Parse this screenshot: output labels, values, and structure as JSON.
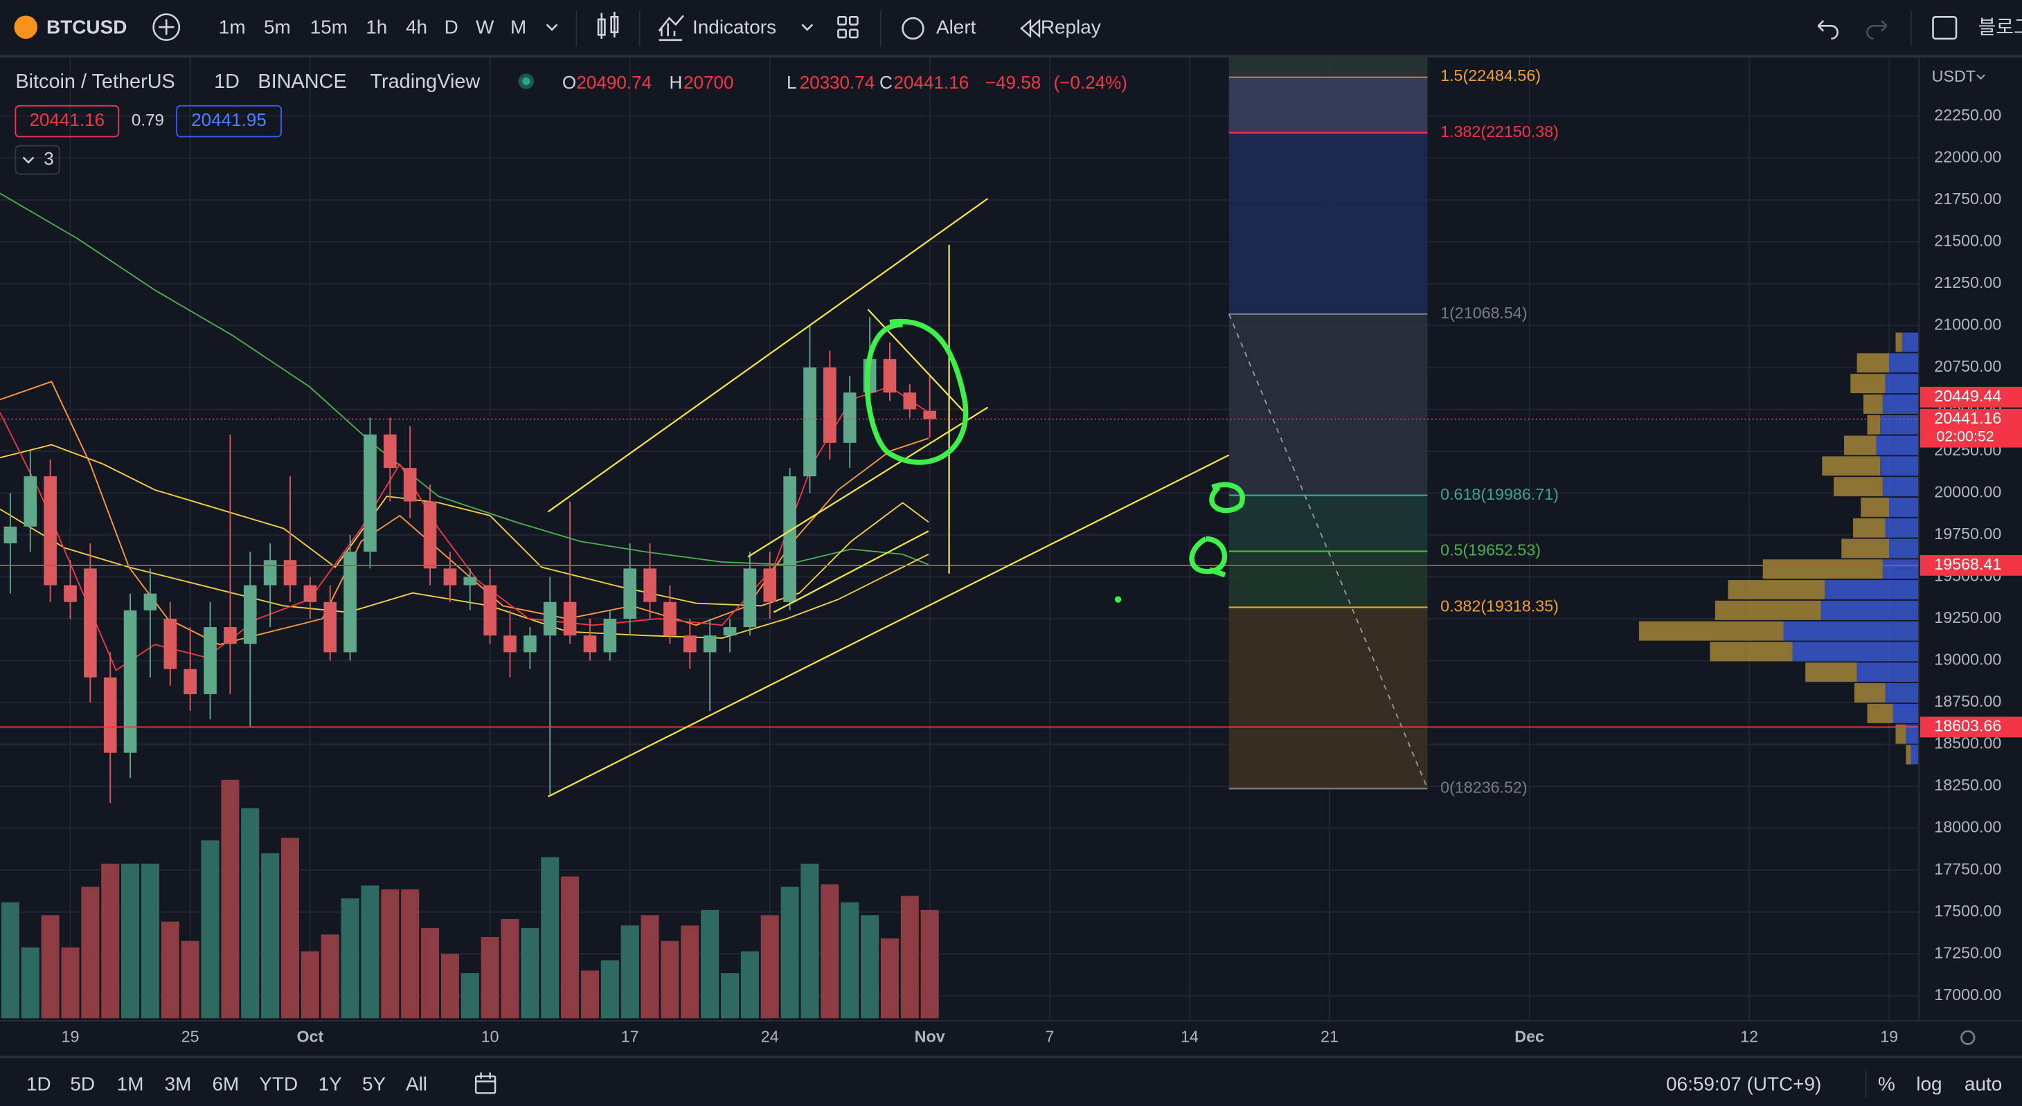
{
  "toolbar": {
    "symbol": "BTCUSD",
    "intervals": [
      "1m",
      "5m",
      "15m",
      "1h",
      "4h",
      "D",
      "W",
      "M"
    ],
    "indicators": "Indicators",
    "alert": "Alert",
    "replay": "Replay",
    "account": "블로그"
  },
  "legend": {
    "title": "Bitcoin / TetherUS",
    "interval": "1D",
    "exchange": "BINANCE",
    "source": "TradingView",
    "open_label": "O",
    "high_label": "H",
    "low_label": "L",
    "close_label": "C",
    "change": "−49.58",
    "change_percent": "(−0.24%)",
    "spread": "0.79",
    "ask": "20441.95",
    "indicator_count": "3"
  },
  "chart": {
    "currency": "USDT",
    "ylim": [
      16850,
      22604
    ],
    "yticks": [
      {
        "value": 17000,
        "label": "17000.00"
      },
      {
        "value": 17250,
        "label": "17250.00"
      },
      {
        "value": 17500,
        "label": "17500.00"
      },
      {
        "value": 17750,
        "label": "17750.00"
      },
      {
        "value": 18000,
        "label": "18000.00"
      },
      {
        "value": 18250,
        "label": "18250.00"
      },
      {
        "value": 18500,
        "label": "18500.00"
      },
      {
        "value": 18750,
        "label": "18750.00"
      },
      {
        "value": 19000,
        "label": "19000.00"
      },
      {
        "value": 19250,
        "label": "19250.00"
      },
      {
        "value": 19500,
        "label": "19500.00"
      },
      {
        "value": 19750,
        "label": "19750.00"
      },
      {
        "value": 20000,
        "label": "20000.00"
      },
      {
        "value": 20250,
        "label": "20250.00"
      },
      {
        "value": 20500,
        "label": "20500.00"
      },
      {
        "value": 20750,
        "label": "20750.00"
      },
      {
        "value": 21000,
        "label": "21000.00"
      },
      {
        "value": 21250,
        "label": "21250.00"
      },
      {
        "value": 21500,
        "label": "21500.00"
      },
      {
        "value": 21750,
        "label": "21750.00"
      },
      {
        "value": 22000,
        "label": "22000.00"
      },
      {
        "value": 22250,
        "label": "22250.00"
      }
    ],
    "x_labels": [
      "19",
      "25",
      "Oct",
      "10",
      "17",
      "24",
      "Nov",
      "7",
      "14",
      "21",
      "Dec",
      "12",
      "19"
    ],
    "candles": [
      [
        19700,
        20000,
        19400,
        19800
      ],
      [
        19800,
        20250,
        19650,
        20100
      ],
      [
        20100,
        20200,
        19350,
        19450
      ],
      [
        19450,
        19600,
        19250,
        19350
      ],
      [
        19550,
        19700,
        18750,
        18900
      ],
      [
        18900,
        19050,
        18150,
        18450
      ],
      [
        18450,
        19400,
        18300,
        19300
      ],
      [
        19300,
        19550,
        18900,
        19400
      ],
      [
        19250,
        19350,
        18850,
        18950
      ],
      [
        18950,
        19200,
        18700,
        18800
      ],
      [
        18800,
        19350,
        18650,
        19200
      ],
      [
        19200,
        20350,
        18800,
        19100
      ],
      [
        19100,
        19650,
        18600,
        19450
      ],
      [
        19450,
        19700,
        19200,
        19600
      ],
      [
        19600,
        20100,
        19350,
        19450
      ],
      [
        19450,
        19500,
        19250,
        19350
      ],
      [
        19350,
        19450,
        19000,
        19050
      ],
      [
        19050,
        19750,
        19000,
        19650
      ],
      [
        19650,
        20450,
        19550,
        20350
      ],
      [
        20350,
        20450,
        19950,
        20150
      ],
      [
        20150,
        20400,
        19850,
        19950
      ],
      [
        19950,
        20050,
        19450,
        19550
      ],
      [
        19550,
        19650,
        19350,
        19450
      ],
      [
        19450,
        19550,
        19300,
        19500
      ],
      [
        19450,
        19550,
        19100,
        19150
      ],
      [
        19150,
        19300,
        18900,
        19050
      ],
      [
        19050,
        19200,
        18950,
        19150
      ],
      [
        19150,
        19500,
        18200,
        19350
      ],
      [
        19350,
        19950,
        19100,
        19150
      ],
      [
        19150,
        19250,
        19000,
        19050
      ],
      [
        19050,
        19300,
        19000,
        19250
      ],
      [
        19250,
        19700,
        19150,
        19550
      ],
      [
        19550,
        19700,
        19250,
        19350
      ],
      [
        19350,
        19450,
        19100,
        19150
      ],
      [
        19150,
        19250,
        18950,
        19050
      ],
      [
        19050,
        19250,
        18700,
        19150
      ],
      [
        19150,
        19250,
        19050,
        19200
      ],
      [
        19200,
        19650,
        19150,
        19550
      ],
      [
        19550,
        19650,
        19250,
        19350
      ],
      [
        19350,
        20150,
        19300,
        20100
      ],
      [
        20100,
        21000,
        20000,
        20750
      ],
      [
        20750,
        20850,
        20200,
        20300
      ],
      [
        20300,
        20700,
        20150,
        20600
      ],
      [
        20600,
        21050,
        20500,
        20800
      ],
      [
        20800,
        20900,
        20550,
        20600
      ],
      [
        20600,
        20650,
        20450,
        20500
      ],
      [
        20490.74,
        20700.0,
        20330.74,
        20441.16
      ]
    ],
    "volumes": [
      90,
      55,
      80,
      55,
      102,
      120,
      120,
      120,
      75,
      60,
      138,
      185,
      163,
      128,
      140,
      52,
      65,
      93,
      103,
      100,
      100,
      70,
      50,
      35,
      63,
      77,
      70,
      125,
      110,
      37,
      45,
      72,
      80,
      60,
      72,
      84,
      35,
      52,
      80,
      102,
      120,
      104,
      90,
      80,
      62,
      95,
      84
    ],
    "price_labels": [
      {
        "value": 20449.44,
        "color": "#f23645"
      },
      {
        "value": 19568.41,
        "color": "#f23645"
      },
      {
        "value": 18603.66,
        "color": "#f23645"
      }
    ],
    "countdown": "02:00:52",
    "fib_levels": [
      {
        "label": "1.5(22484.56)",
        "value": 22484.56,
        "color": "#f0a030"
      },
      {
        "label": "1.382(22150.38)",
        "value": 22150.38,
        "color": "#f23645"
      },
      {
        "label": "1(21068.54)",
        "value": 21068.54,
        "color": "#787b86"
      },
      {
        "label": "0.618(19986.71)",
        "value": 19986.71,
        "color": "#3aa58a"
      },
      {
        "label": "0.5(19652.53)",
        "value": 19652.53,
        "color": "#4caf50"
      },
      {
        "label": "0.382(19318.35)",
        "value": 19318.35,
        "color": "#f0a030"
      },
      {
        "label": "0(18236.52)",
        "value": 18236.52,
        "color": "#787b86"
      }
    ]
  },
  "bottom_bar": {
    "ranges": [
      "1D",
      "5D",
      "1M",
      "3M",
      "6M",
      "YTD",
      "1Y",
      "5Y",
      "All"
    ],
    "clock": "06:59:07 (UTC+9)",
    "percent": "%",
    "log": "log",
    "auto": "auto"
  }
}
